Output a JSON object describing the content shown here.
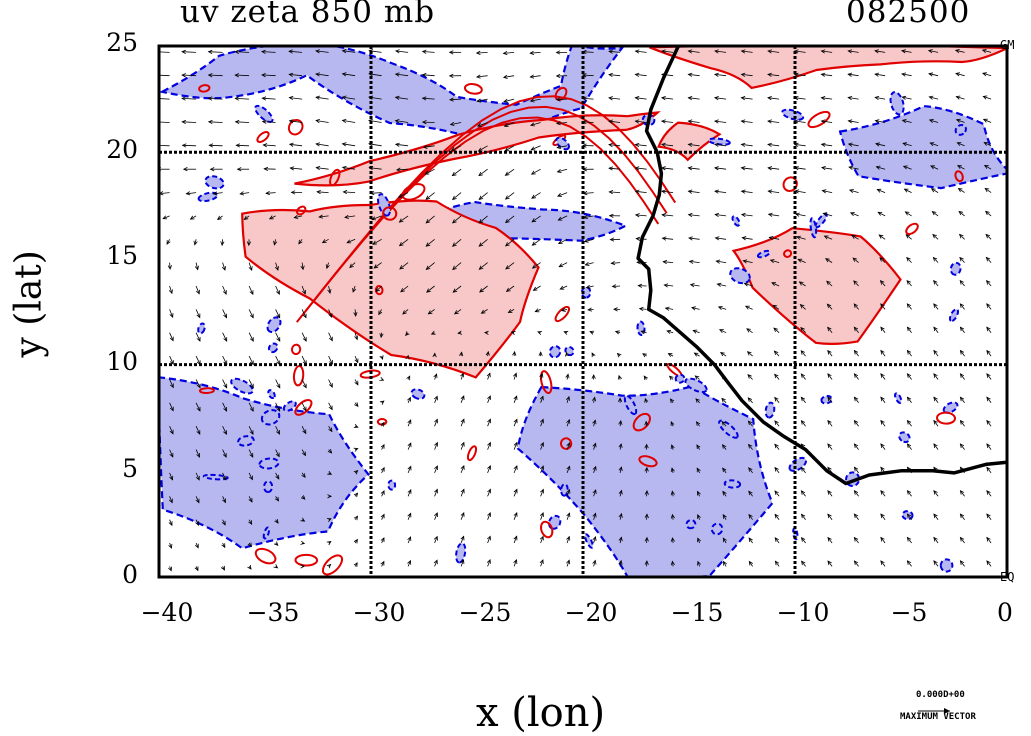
{
  "title": "uv zeta 850 mb",
  "timestamp": "082500",
  "x_axis": {
    "label": "x (lon)",
    "ticks": [
      "−40",
      "−35",
      "−30",
      "−25",
      "−20",
      "−15",
      "−10",
      "−5",
      "0"
    ],
    "range": [
      -40,
      0
    ]
  },
  "y_axis": {
    "label": "y (lat)",
    "ticks": [
      "0",
      "5",
      "10",
      "15",
      "20",
      "25"
    ],
    "range": [
      0,
      25
    ]
  },
  "corner_labels": {
    "top_right": "GM",
    "bottom_right": "EQ"
  },
  "reference_vector": {
    "value": "0.000D+00",
    "label": "MAXIMUM VECTOR"
  },
  "colors": {
    "positive_contour": "#e00000",
    "positive_fill": "#f8c8c8",
    "negative_contour": "#0000e0",
    "negative_fill": "#b8b8f0",
    "coastline": "#000000",
    "grid": "#000000"
  },
  "map_data": {
    "field": "relative vorticity (zeta) with wind vectors (u,v)",
    "level": "850 mb",
    "grid_lines_lon": [
      -30,
      -20,
      -10
    ],
    "grid_lines_lat": [
      10,
      20
    ],
    "coastline_lonlat": [
      [
        -15.5,
        25
      ],
      [
        -16.2,
        23.5
      ],
      [
        -16.8,
        22
      ],
      [
        -17.0,
        21
      ],
      [
        -16.5,
        20
      ],
      [
        -16.3,
        19
      ],
      [
        -16.4,
        18
      ],
      [
        -16.7,
        17
      ],
      [
        -17.2,
        16
      ],
      [
        -17.4,
        15
      ],
      [
        -16.9,
        14.5
      ],
      [
        -16.8,
        13.5
      ],
      [
        -16.9,
        12.6
      ],
      [
        -16.2,
        12.2
      ],
      [
        -15.4,
        11.5
      ],
      [
        -14.6,
        10.8
      ],
      [
        -13.8,
        10
      ],
      [
        -13.2,
        9.2
      ],
      [
        -12.5,
        8.3
      ],
      [
        -11.5,
        7.3
      ],
      [
        -10.5,
        6.6
      ],
      [
        -9.5,
        6.0
      ],
      [
        -8.5,
        5.0
      ],
      [
        -7.6,
        4.4
      ],
      [
        -6.5,
        4.8
      ],
      [
        -5.0,
        5.0
      ],
      [
        -3.5,
        5.0
      ],
      [
        -2.5,
        4.9
      ],
      [
        -1.0,
        5.3
      ],
      [
        0,
        5.4
      ]
    ],
    "positive_regions_lonlat": [
      [
        [
          -36,
          17
        ],
        [
          -33,
          17.2
        ],
        [
          -30,
          17.5
        ],
        [
          -27,
          17.8
        ],
        [
          -24,
          16.5
        ],
        [
          -22,
          14.5
        ],
        [
          -23,
          12
        ],
        [
          -25,
          9.5
        ],
        [
          -29,
          10.5
        ],
        [
          -33,
          13
        ],
        [
          -36,
          15
        ]
      ],
      [
        [
          -33.5,
          18.5
        ],
        [
          -30,
          19.6
        ],
        [
          -26,
          20.8
        ],
        [
          -22,
          21.5
        ],
        [
          -18,
          21.8
        ],
        [
          -16.5,
          22
        ],
        [
          -18,
          21.1
        ],
        [
          -22,
          20.6
        ],
        [
          -26,
          19.8
        ],
        [
          -30,
          18.6
        ]
      ],
      [
        [
          -17,
          25
        ],
        [
          -14,
          24
        ],
        [
          -12,
          23
        ],
        [
          -9,
          24
        ],
        [
          -6,
          24
        ],
        [
          -2,
          24.3
        ],
        [
          0,
          25
        ]
      ],
      [
        [
          -13,
          15.5
        ],
        [
          -10,
          16.5
        ],
        [
          -7,
          16
        ],
        [
          -5,
          14
        ],
        [
          -7,
          11
        ],
        [
          -9,
          11
        ],
        [
          -12,
          13.5
        ]
      ],
      [
        [
          -16.5,
          20.2
        ],
        [
          -15.5,
          21.5
        ],
        [
          -13.5,
          20.8
        ],
        [
          -15,
          19.5
        ]
      ]
    ],
    "negative_regions_lonlat": [
      [
        [
          -40,
          23
        ],
        [
          -37,
          24.5
        ],
        [
          -33,
          25
        ],
        [
          -29,
          24.2
        ],
        [
          -26,
          22.5
        ],
        [
          -23,
          22.4
        ],
        [
          -21,
          23
        ],
        [
          -20.5,
          25
        ],
        [
          -18,
          25
        ],
        [
          -20,
          22
        ],
        [
          -24,
          20.5
        ],
        [
          -29,
          21.5
        ],
        [
          -33,
          23.5
        ],
        [
          -37,
          22.5
        ]
      ],
      [
        [
          -30,
          16.5
        ],
        [
          -27,
          17
        ],
        [
          -25,
          17.5
        ],
        [
          -22,
          17.2
        ],
        [
          -18,
          16.6
        ],
        [
          -20,
          15.8
        ],
        [
          -24,
          16
        ],
        [
          -28,
          15.5
        ]
      ],
      [
        [
          -40,
          9.5
        ],
        [
          -36,
          8.5
        ],
        [
          -32,
          7.5
        ],
        [
          -30,
          5
        ],
        [
          -32,
          2
        ],
        [
          -36,
          1.5
        ],
        [
          -40,
          3
        ]
      ],
      [
        [
          -22,
          9
        ],
        [
          -18,
          8.5
        ],
        [
          -15,
          8.8
        ],
        [
          -12,
          7.5
        ],
        [
          -11,
          3.5
        ],
        [
          -14,
          0
        ],
        [
          -18,
          0
        ],
        [
          -20,
          3
        ],
        [
          -23,
          6
        ]
      ],
      [
        [
          -8,
          21
        ],
        [
          -4,
          22
        ],
        [
          -1,
          21.5
        ],
        [
          0,
          19
        ],
        [
          -3,
          18.5
        ],
        [
          -7,
          19
        ]
      ]
    ],
    "sample_wind_vectors": [
      {
        "lon": -38,
        "lat": 24,
        "u": -1.0,
        "v": 0.05
      },
      {
        "lon": -30,
        "lat": 21,
        "u": -0.9,
        "v": 0.15
      },
      {
        "lon": -26,
        "lat": 17,
        "u": -0.6,
        "v": -0.5
      },
      {
        "lon": -35,
        "lat": 11,
        "u": 0.3,
        "v": -0.6
      },
      {
        "lon": -25,
        "lat": 6,
        "u": 0.2,
        "v": 0.5
      },
      {
        "lon": -15,
        "lat": 21,
        "u": -0.8,
        "v": 0.1
      },
      {
        "lon": -5,
        "lat": 8,
        "u": -0.3,
        "v": 0.4
      }
    ]
  }
}
